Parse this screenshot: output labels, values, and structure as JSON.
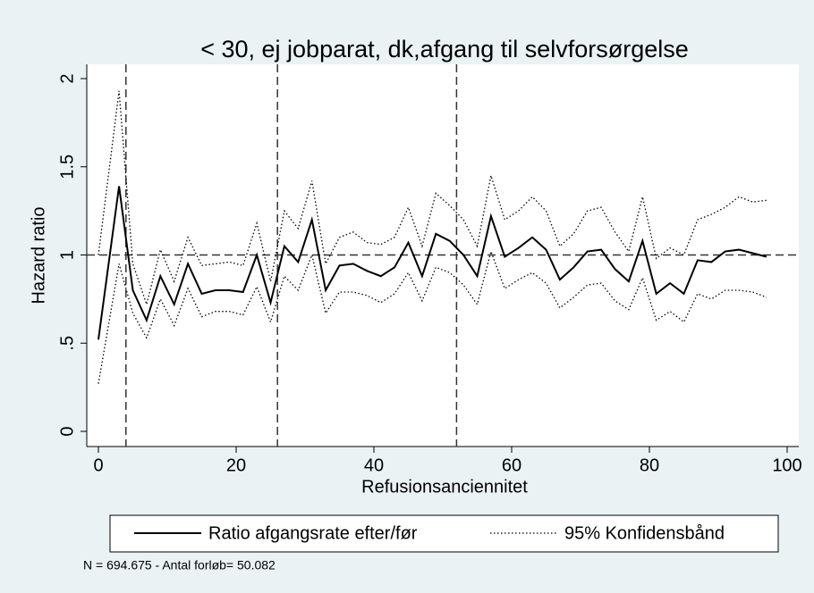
{
  "chart_data": {
    "type": "line",
    "title": "< 30, ej jobparat, dk,afgang til selvforsørgelse",
    "xlabel": "Refusionsanciennitet",
    "ylabel": "Hazard ratio",
    "note": "N = 694.675 - Antal forløb= 50.082",
    "x": [
      0,
      3,
      5,
      7,
      9,
      11,
      13,
      15,
      17,
      19,
      21,
      23,
      25,
      27,
      29,
      31,
      33,
      35,
      37,
      39,
      41,
      43,
      45,
      47,
      49,
      51,
      53,
      55,
      57,
      59,
      61,
      63,
      65,
      67,
      69,
      71,
      73,
      75,
      77,
      79,
      81,
      83,
      85,
      87,
      89,
      91,
      93,
      95,
      97
    ],
    "series": [
      {
        "name": "Ratio afgangsrate efter/før",
        "color": "#000000",
        "style": "solid",
        "values": [
          0.52,
          1.39,
          0.8,
          0.63,
          0.88,
          0.72,
          0.95,
          0.78,
          0.8,
          0.8,
          0.79,
          1.0,
          0.73,
          1.05,
          0.96,
          1.2,
          0.8,
          0.94,
          0.95,
          0.91,
          0.88,
          0.93,
          1.07,
          0.88,
          1.12,
          1.08,
          1.0,
          0.88,
          1.22,
          0.99,
          1.04,
          1.1,
          1.03,
          0.86,
          0.93,
          1.02,
          1.03,
          0.92,
          0.85,
          1.08,
          0.78,
          0.84,
          0.78,
          0.97,
          0.96,
          1.02,
          1.03,
          1.01,
          0.99
        ]
      },
      {
        "name": "95% Konfidensbånd",
        "color": "#000000",
        "style": "dotted",
        "values": [
          1.0,
          1.93,
          0.95,
          0.72,
          1.03,
          0.85,
          1.1,
          0.94,
          0.95,
          0.96,
          0.94,
          1.18,
          0.85,
          1.25,
          1.15,
          1.42,
          0.95,
          1.1,
          1.13,
          1.07,
          1.06,
          1.1,
          1.27,
          1.05,
          1.35,
          1.28,
          1.2,
          1.05,
          1.45,
          1.2,
          1.25,
          1.33,
          1.25,
          1.05,
          1.12,
          1.25,
          1.27,
          1.13,
          1.02,
          1.33,
          0.98,
          1.04,
          1.0,
          1.2,
          1.23,
          1.27,
          1.33,
          1.3,
          1.31
        ]
      },
      {
        "color": "#000000",
        "style": "dotted",
        "values": [
          0.27,
          0.95,
          0.67,
          0.53,
          0.75,
          0.6,
          0.81,
          0.65,
          0.68,
          0.68,
          0.66,
          0.82,
          0.62,
          0.88,
          0.8,
          1.0,
          0.67,
          0.79,
          0.79,
          0.77,
          0.73,
          0.78,
          0.9,
          0.74,
          0.93,
          0.9,
          0.83,
          0.72,
          1.02,
          0.81,
          0.86,
          0.9,
          0.84,
          0.7,
          0.76,
          0.83,
          0.84,
          0.74,
          0.69,
          0.87,
          0.63,
          0.68,
          0.62,
          0.78,
          0.75,
          0.8,
          0.8,
          0.79,
          0.76
        ]
      }
    ],
    "xlim": [
      0,
      100
    ],
    "xticks": [
      0,
      20,
      40,
      60,
      80,
      100
    ],
    "ylim": [
      0,
      2
    ],
    "yticks": [
      0,
      {
        "value": 0.5,
        "label": ".5"
      },
      1,
      1.5,
      2
    ],
    "xlines": [
      4,
      26,
      52
    ],
    "ylines": [
      1
    ],
    "legend": "bottom"
  }
}
